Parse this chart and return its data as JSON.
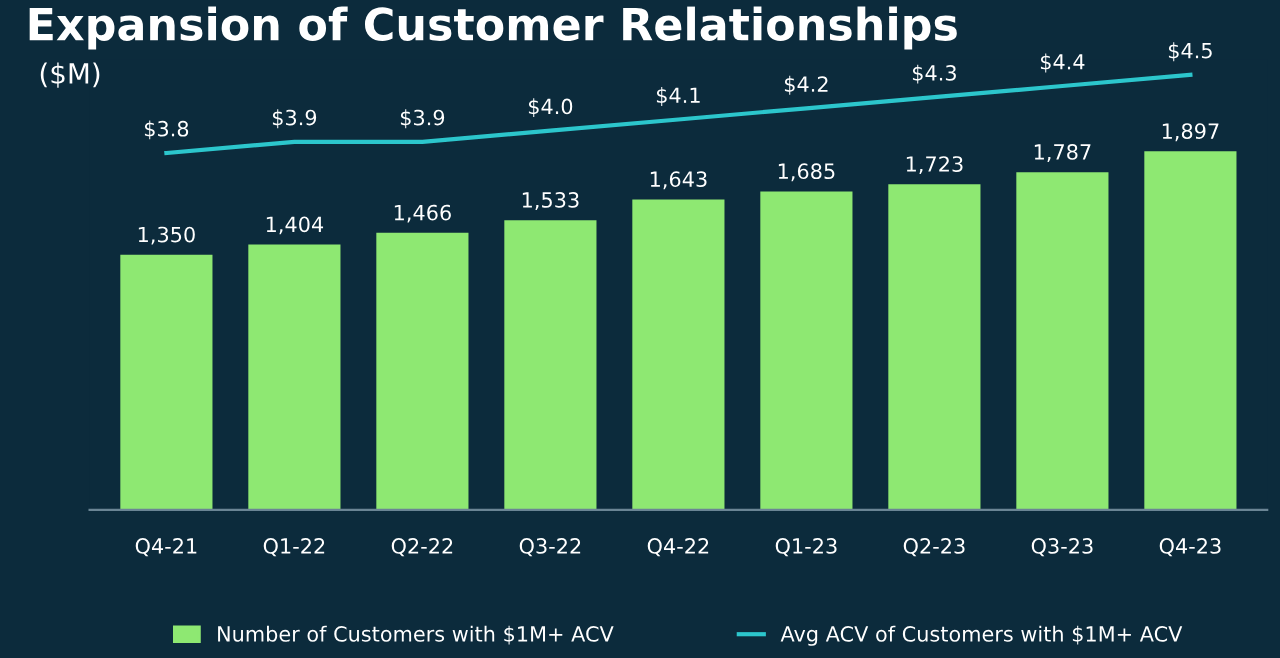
{
  "chart_data": {
    "type": "bar",
    "title": "Expansion of Customer Relationships",
    "subtitle": "($M)",
    "categories": [
      "Q4-21",
      "Q1-22",
      "Q2-22",
      "Q3-22",
      "Q4-22",
      "Q1-23",
      "Q2-23",
      "Q3-23",
      "Q4-23"
    ],
    "series": [
      {
        "name": "Number of Customers with $1M+ ACV",
        "color": "#8ee872",
        "values": [
          1350,
          1404,
          1466,
          1533,
          1643,
          1685,
          1723,
          1787,
          1897
        ],
        "value_labels": [
          "1,350",
          "1,404",
          "1,466",
          "1,533",
          "1,643",
          "1,685",
          "1,723",
          "1,787",
          "1,897"
        ]
      },
      {
        "name": "Avg ACV of Customers with $1M+ ACV",
        "type": "line",
        "axis": "y2",
        "color": "#2cc6cc",
        "values": [
          3.8,
          3.9,
          3.9,
          4.0,
          4.1,
          4.2,
          4.3,
          4.4,
          4.5
        ],
        "value_labels": [
          "$3.8",
          "$3.9",
          "$3.9",
          "$4.0",
          "$4.1",
          "$4.2",
          "$4.3",
          "$4.4",
          "$4.5"
        ]
      }
    ],
    "tick_labels": "x",
    "legend": "bottom",
    "grid": false
  }
}
